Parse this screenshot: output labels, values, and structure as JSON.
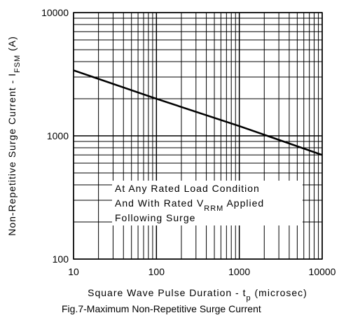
{
  "chart_data": {
    "type": "line",
    "title": "Fig.7-Maximum Non-Repetitive Surge Current",
    "x_label": {
      "text": "Square Wave Pulse Duration - t",
      "sub": "p",
      "after": " (microsec)"
    },
    "y_label": {
      "text": "Non-Repetitive Surge Current - I",
      "sub": "FSM",
      "after": " (A)"
    },
    "annotation": [
      {
        "text": "At Any Rated Load Condition"
      },
      {
        "text": "And With Rated V",
        "sub": "RRM",
        "after": " Applied"
      },
      {
        "text": "Following Surge"
      }
    ],
    "x": [
      10,
      100,
      1000,
      10000
    ],
    "series": [
      {
        "color": "#000000",
        "values": [
          3400,
          2000,
          1200,
          700
        ]
      }
    ],
    "xlim": [
      10,
      10000
    ],
    "xticks": [
      10,
      100,
      1000,
      10000
    ],
    "ylim": [
      100,
      10000
    ],
    "yticks": [
      100,
      1000,
      10000
    ],
    "xscale": "log",
    "yscale": "log",
    "grid": true
  }
}
